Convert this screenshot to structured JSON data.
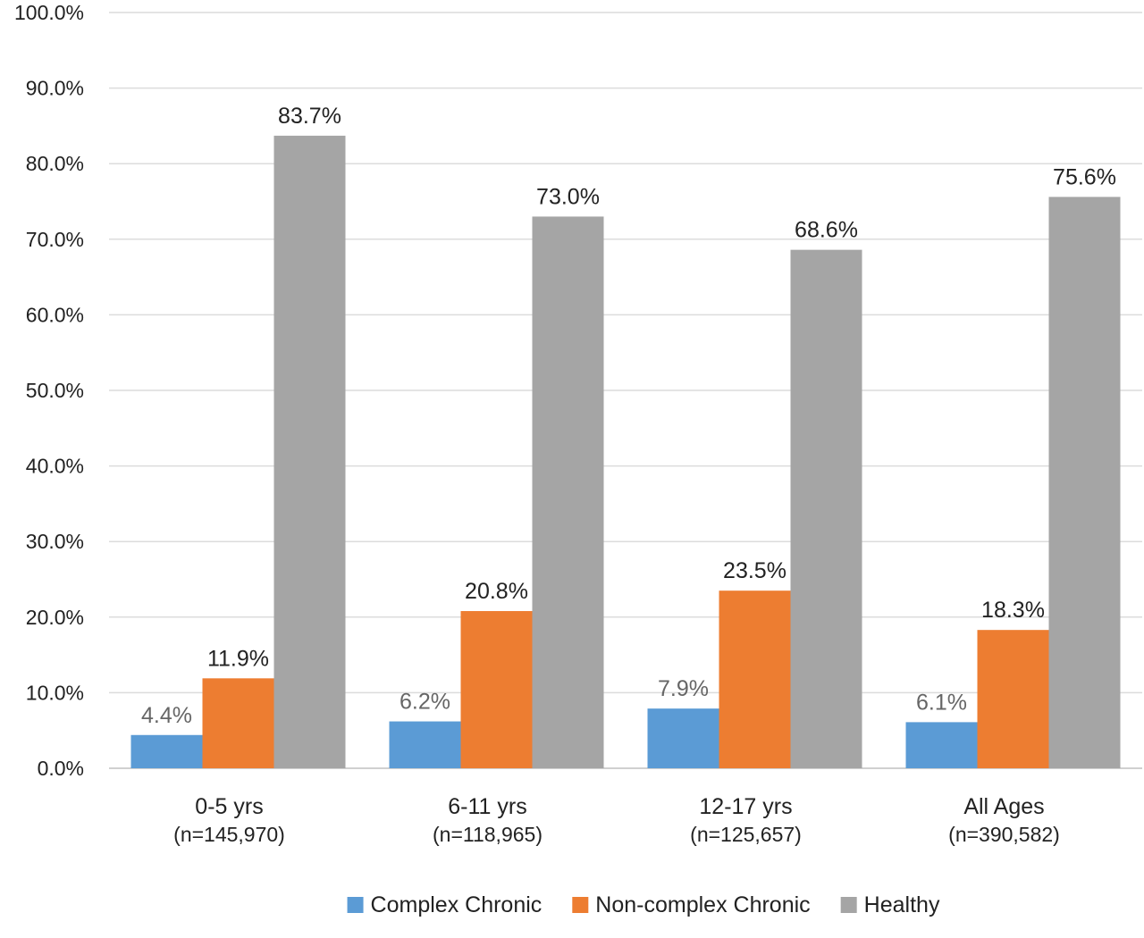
{
  "chart_data": {
    "type": "bar",
    "title": "",
    "xlabel": "",
    "ylabel": "",
    "ylim": [
      0,
      100
    ],
    "y_ticks": [
      "0.0%",
      "10.0%",
      "20.0%",
      "30.0%",
      "40.0%",
      "50.0%",
      "60.0%",
      "70.0%",
      "80.0%",
      "90.0%",
      "100.0%"
    ],
    "grid": true,
    "legend_position": "bottom",
    "categories": [
      {
        "label": "0-5 yrs",
        "sublabel": "(n=145,970)"
      },
      {
        "label": "6-11 yrs",
        "sublabel": "(n=118,965)"
      },
      {
        "label": "12-17 yrs",
        "sublabel": "(n=125,657)"
      },
      {
        "label": "All Ages",
        "sublabel": "(n=390,582)"
      }
    ],
    "series": [
      {
        "name": "Complex Chronic",
        "color": "#5b9bd5",
        "label_color": "#666666",
        "values": [
          4.4,
          6.2,
          7.9,
          6.1
        ],
        "labels": [
          "4.4%",
          "6.2%",
          "7.9%",
          "6.1%"
        ]
      },
      {
        "name": "Non-complex Chronic",
        "color": "#ed7d31",
        "label_color": "#222222",
        "values": [
          11.9,
          20.8,
          23.5,
          18.3
        ],
        "labels": [
          "11.9%",
          "20.8%",
          "23.5%",
          "18.3%"
        ]
      },
      {
        "name": "Healthy",
        "color": "#a5a5a5",
        "label_color": "#222222",
        "values": [
          83.7,
          73.0,
          68.6,
          75.6
        ],
        "labels": [
          "83.7%",
          "73.0%",
          "68.6%",
          "75.6%"
        ]
      }
    ]
  }
}
